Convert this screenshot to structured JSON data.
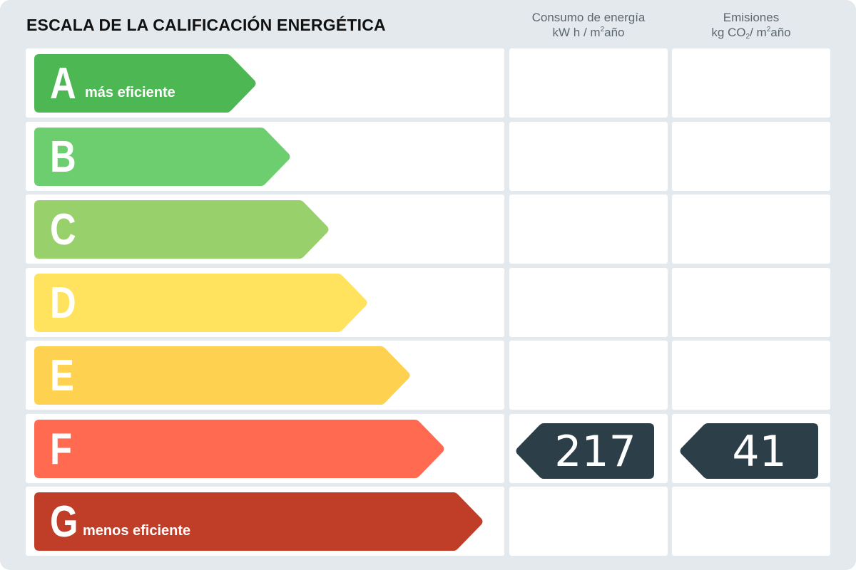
{
  "title": "ESCALA DE LA CALIFICACIÓN ENERGÉTICA",
  "headers": {
    "energy": {
      "line1": "Consumo de energía",
      "line2_pre": "kW h / m",
      "line2_sup": "2",
      "line2_post": "año"
    },
    "emissions": {
      "line1": "Emisiones",
      "line2_pre": "kg CO",
      "line2_sub": "2",
      "line2_mid": "/ m",
      "line2_sup": "2",
      "line2_post": "año"
    }
  },
  "grades": [
    {
      "letter": "A",
      "label": "más eficiente",
      "color": "#4db853"
    },
    {
      "letter": "B",
      "label": "",
      "color": "#6cce6e"
    },
    {
      "letter": "C",
      "label": "",
      "color": "#98d06b"
    },
    {
      "letter": "D",
      "label": "",
      "color": "#ffe25e"
    },
    {
      "letter": "E",
      "label": "",
      "color": "#ffd150"
    },
    {
      "letter": "F",
      "label": "",
      "color": "#ff6a50"
    },
    {
      "letter": "G",
      "label": "menos eficiente",
      "color": "#c03d27"
    }
  ],
  "rating": {
    "grade": "F",
    "energy_value": "217",
    "emissions_value": "41",
    "tag_color": "#2c3e48"
  },
  "colors": {
    "background": "#e3e9ec",
    "cell": "#ffffff"
  }
}
